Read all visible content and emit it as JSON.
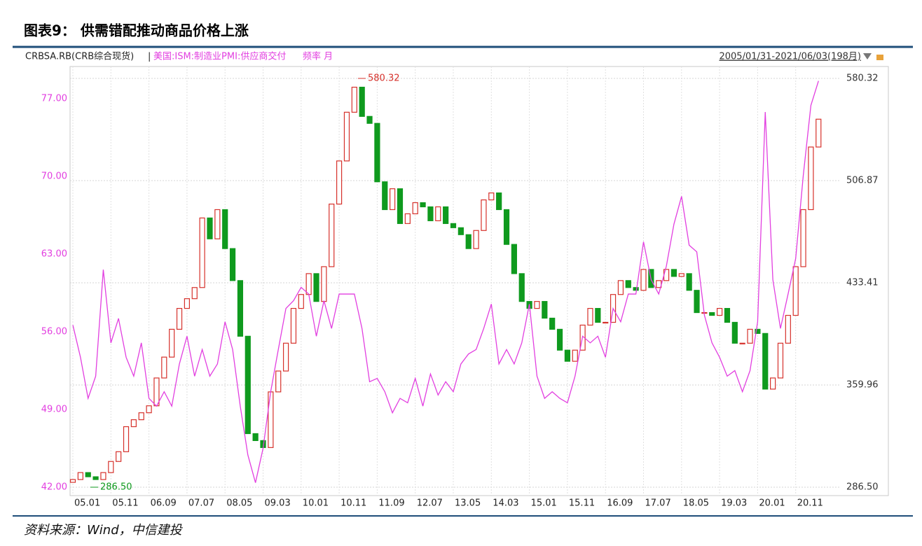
{
  "chart_data": {
    "type": "candlestick-line",
    "title": "图表9：  供需错配推动商品价格上涨",
    "header_left": "CRBSA.RB(CRB综合现货)",
    "separator": "|",
    "frequency": "频率 月",
    "date_range": "2005/01/31-2021/06/03(198月)",
    "source": "资料来源：Wind，中信建投",
    "categories": [
      "05.01",
      null,
      null,
      null,
      null,
      "05.11",
      null,
      null,
      null,
      null,
      "06.09",
      null,
      null,
      null,
      null,
      "07.07",
      null,
      null,
      null,
      null,
      "08.05",
      null,
      null,
      null,
      null,
      "09.03",
      null,
      null,
      null,
      null,
      "10.01",
      null,
      null,
      null,
      null,
      "10.11",
      null,
      null,
      null,
      null,
      "11.09",
      null,
      null,
      null,
      null,
      "12.07",
      null,
      null,
      null,
      null,
      "13.05",
      null,
      null,
      null,
      null,
      "14.03",
      null,
      null,
      null,
      null,
      "15.01",
      null,
      null,
      null,
      null,
      "15.11",
      null,
      null,
      null,
      null,
      "16.09",
      null,
      null,
      null,
      null,
      "17.07",
      null,
      null,
      null,
      null,
      "18.05",
      null,
      null,
      null,
      null,
      "19.03",
      null,
      null,
      null,
      null,
      "20.01",
      null,
      null,
      null,
      null,
      "20.11",
      null,
      null,
      null
    ],
    "series": [
      {
        "name": "CRBSA.RB(CRB综合现货)",
        "kind": "candlestick",
        "axis": "y2",
        "up_color": "#d6312b",
        "down_color": "#0f9a1e",
        "open": [
          290,
          292,
          297,
          294,
          292,
          297,
          305,
          312,
          330,
          335,
          340,
          345,
          365,
          380,
          400,
          415,
          422,
          430,
          480,
          465,
          486,
          458,
          435,
          395,
          325,
          320,
          315,
          355,
          370,
          390,
          415,
          425,
          440,
          420,
          445,
          490,
          521,
          556,
          574,
          553,
          548,
          506,
          486,
          501,
          476,
          483,
          491,
          488,
          478,
          488,
          476,
          473,
          468,
          458,
          471,
          493,
          498,
          486,
          461,
          440,
          420,
          415,
          420,
          408,
          400,
          385,
          377,
          385,
          403,
          415,
          405,
          405,
          425,
          435,
          430,
          428,
          443,
          430,
          435,
          443,
          438,
          440,
          428,
          412,
          412,
          410,
          415,
          405,
          390,
          390,
          400,
          397,
          357,
          365,
          390,
          410,
          445,
          486,
          531
        ],
        "close": [
          292,
          297,
          294,
          292,
          297,
          305,
          312,
          330,
          335,
          340,
          345,
          365,
          380,
          400,
          415,
          422,
          430,
          480,
          465,
          486,
          458,
          435,
          395,
          325,
          320,
          315,
          355,
          370,
          390,
          415,
          425,
          440,
          420,
          445,
          490,
          521,
          556,
          574,
          553,
          548,
          506,
          486,
          501,
          476,
          483,
          491,
          488,
          478,
          488,
          476,
          473,
          468,
          458,
          471,
          493,
          498,
          486,
          461,
          440,
          420,
          415,
          420,
          408,
          400,
          385,
          377,
          385,
          403,
          415,
          405,
          405,
          425,
          435,
          430,
          428,
          443,
          430,
          435,
          443,
          438,
          440,
          428,
          412,
          412,
          410,
          415,
          405,
          390,
          390,
          400,
          397,
          357,
          365,
          390,
          410,
          445,
          486,
          531,
          551
        ]
      },
      {
        "name": "美国:ISM:制造业PMI:供应商交付",
        "kind": "line",
        "axis": "y",
        "color": "#e23fe0",
        "values": [
          56.6,
          53.7,
          50,
          52,
          61.6,
          55,
          57.2,
          53.7,
          52,
          55,
          50,
          49.3,
          50.6,
          49.3,
          53.1,
          55.6,
          52,
          54.4,
          52,
          53.1,
          56.9,
          54.4,
          49.3,
          44.9,
          42.4,
          45.5,
          50.6,
          54.4,
          58.1,
          58.8,
          60,
          59.4,
          55.6,
          58.8,
          56.3,
          59.4,
          59.4,
          59.4,
          56.3,
          51.5,
          51.8,
          50.6,
          48.7,
          50,
          49.6,
          51.8,
          49.3,
          52.2,
          50.3,
          51.5,
          50.6,
          53.1,
          54,
          54.4,
          56.3,
          58.5,
          53.1,
          54.4,
          53.1,
          55,
          58.5,
          52,
          50,
          50.6,
          50,
          49.6,
          52,
          55.6,
          55,
          55.6,
          53.7,
          58.1,
          56.9,
          59.4,
          59.4,
          64.1,
          60.7,
          59.4,
          61.9,
          65.7,
          68.2,
          63.8,
          63.2,
          57.5,
          55,
          53.7,
          52,
          52.5,
          50.6,
          52.5,
          56.9,
          75.8,
          60.7,
          56.3,
          59.4,
          62.6,
          70.1,
          76.4,
          78.6
        ]
      }
    ],
    "ylim": [
      41.24,
      79.9
    ],
    "yticks": [
      {
        "value": 42,
        "label": "42.00"
      },
      {
        "value": 49,
        "label": "49.00"
      },
      {
        "value": 56,
        "label": "56.00"
      },
      {
        "value": 63,
        "label": "63.00"
      },
      {
        "value": 70,
        "label": "70.00"
      },
      {
        "value": 77,
        "label": "77.00"
      }
    ],
    "y2lim": [
      280.46,
      588.87
    ],
    "y2ticks": [
      {
        "value": 286.5,
        "label": "286.50"
      },
      {
        "value": 359.96,
        "label": "359.96"
      },
      {
        "value": 433.41,
        "label": "433.41"
      },
      {
        "value": 506.87,
        "label": "506.87"
      },
      {
        "value": 580.32,
        "label": "580.32"
      }
    ],
    "annotations": [
      {
        "value": 580.32,
        "label": "580.32"
      },
      {
        "value": 286.5,
        "label": "286.50"
      }
    ],
    "grid": true
  }
}
